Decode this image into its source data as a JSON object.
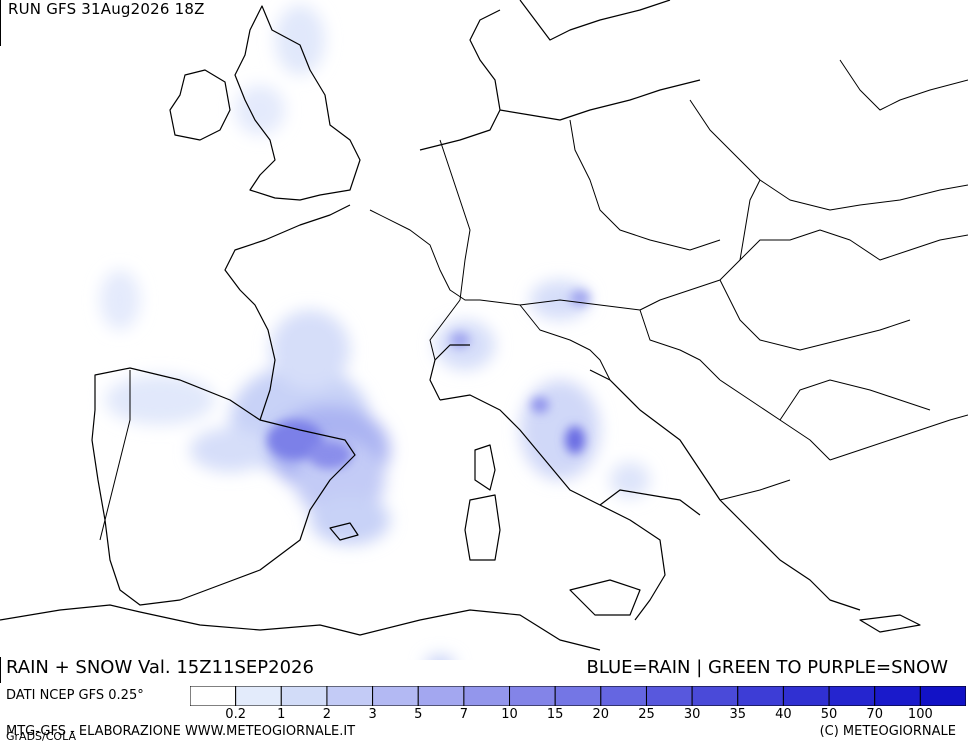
{
  "header": {
    "run_title": "RUN GFS 31Aug2026 18Z"
  },
  "map": {
    "caption": "RAIN + SNOW Val. 15Z11SEP2026",
    "legend_caption": "BLUE=RAIN | GREEN TO PURPLE=SNOW"
  },
  "source": {
    "label": "DATI NCEP GFS 0.25°"
  },
  "colorbar": {
    "labels": [
      "0.2",
      "1",
      "2",
      "3",
      "5",
      "7",
      "10",
      "15",
      "20",
      "25",
      "30",
      "35",
      "40",
      "50",
      "70",
      "100"
    ],
    "colors": [
      "#ffffff",
      "#e3ebfb",
      "#d2dcf8",
      "#c3cbf6",
      "#b3b9f3",
      "#a3a7f0",
      "#9396ec",
      "#8384e8",
      "#7476e5",
      "#6566e1",
      "#5858dd",
      "#4a4ad9",
      "#3d3dd6",
      "#3030d2",
      "#2525cf",
      "#1a1acb",
      "#1212c6"
    ]
  },
  "footer": {
    "left": "MTG-GFS - ELABORAZIONE WWW.METEOGIORNALE.IT",
    "left_small": "GrADS/COLA",
    "right": "(C) METEOGIORNALE"
  }
}
